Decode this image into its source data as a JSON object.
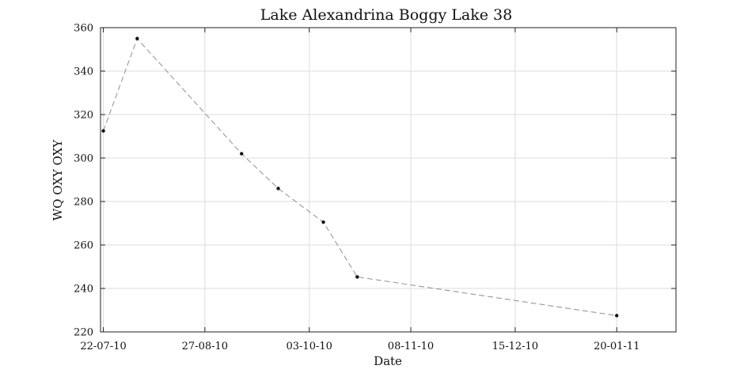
{
  "chart_data": {
    "type": "line",
    "title": "Lake Alexandrina Boggy Lake 38",
    "xlabel": "Date",
    "ylabel": "WQ OXY OXY",
    "x_ticks": [
      "22-07-10",
      "27-08-10",
      "03-10-10",
      "08-11-10",
      "15-12-10",
      "20-01-11"
    ],
    "y_ticks": [
      220,
      240,
      260,
      280,
      300,
      320,
      340,
      360
    ],
    "xlim": [
      "21-07-10",
      "10-02-11"
    ],
    "ylim": [
      220,
      360
    ],
    "grid": true,
    "series": [
      {
        "color": "#999999",
        "points": [
          {
            "x": "22-07-10",
            "y": 312.5
          },
          {
            "x": "03-08-10",
            "y": 355
          },
          {
            "x": "09-09-10",
            "y": 302
          },
          {
            "x": "22-09-10",
            "y": 286
          },
          {
            "x": "08-10-10",
            "y": 270.5
          },
          {
            "x": "20-10-10",
            "y": 245.3
          },
          {
            "x": "20-01-11",
            "y": 227.5
          }
        ]
      }
    ]
  }
}
